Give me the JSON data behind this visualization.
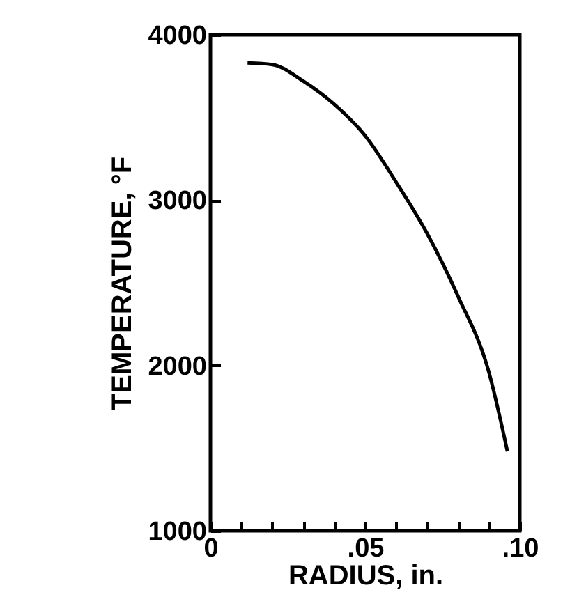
{
  "chart_data": {
    "type": "line",
    "xlabel": "RADIUS, in.",
    "ylabel": "TEMPERATURE, °F",
    "x": [
      0.012,
      0.02,
      0.03,
      0.04,
      0.05,
      0.06,
      0.07,
      0.08,
      0.09,
      0.096
    ],
    "series": [
      {
        "color": "#000000",
        "values": [
          3830,
          3820,
          3720,
          3580,
          3390,
          3110,
          2800,
          2420,
          1960,
          1480
        ]
      }
    ],
    "xlim": [
      0,
      0.1
    ],
    "xticks": [
      {
        "value": 0,
        "label": "0"
      },
      {
        "value": 0.01,
        "label": null
      },
      {
        "value": 0.02,
        "label": null
      },
      {
        "value": 0.03,
        "label": null
      },
      {
        "value": 0.04,
        "label": null
      },
      {
        "value": 0.05,
        "label": ".05"
      },
      {
        "value": 0.06,
        "label": null
      },
      {
        "value": 0.07,
        "label": null
      },
      {
        "value": 0.08,
        "label": null
      },
      {
        "value": 0.09,
        "label": null
      },
      {
        "value": 0.1,
        "label": ".10"
      }
    ],
    "ylim": [
      1000,
      4000
    ],
    "yticks": [
      1000,
      2000,
      3000,
      4000
    ],
    "grid": false,
    "marker": "none",
    "line_style": "solid"
  }
}
